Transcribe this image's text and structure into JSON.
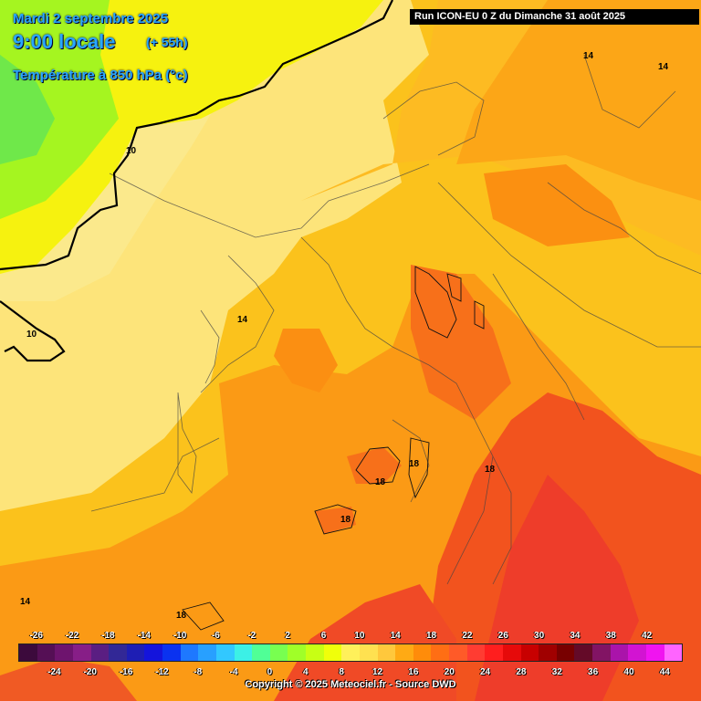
{
  "header": {
    "date": "Mardi 2 septembre 2025",
    "time": "9:00 locale",
    "lead": "(+ 55h)",
    "field": "Température à 850 hPa (°c)"
  },
  "run_banner": "Run ICON-EU 0 Z du Dimanche 31 août 2025",
  "contour_labels": [
    "14",
    "14",
    "10",
    "10",
    "14",
    "18",
    "18",
    "18",
    "18",
    "14",
    "18"
  ],
  "legend": {
    "top_ticks": [
      "-26",
      "-22",
      "-18",
      "-14",
      "-10",
      "-6",
      "-2",
      "2",
      "6",
      "10",
      "14",
      "18",
      "22",
      "26",
      "30",
      "34",
      "38",
      "42"
    ],
    "bottom_ticks": [
      "-24",
      "-20",
      "-16",
      "-12",
      "-8",
      "-4",
      "0",
      "4",
      "8",
      "12",
      "16",
      "20",
      "24",
      "28",
      "32",
      "36",
      "40",
      "44"
    ],
    "colors": [
      "#3c0a3c",
      "#550f55",
      "#6e146e",
      "#871e87",
      "#5a1e82",
      "#322896",
      "#1e1eb4",
      "#1414dc",
      "#0a32f0",
      "#1e78ff",
      "#28a0ff",
      "#32c8ff",
      "#3cf0e6",
      "#50ff96",
      "#78ff50",
      "#a0ff28",
      "#c8ff14",
      "#f0ff0a",
      "#fff05a",
      "#ffe150",
      "#ffc83c",
      "#ffaa14",
      "#ff8c0a",
      "#ff6e14",
      "#ff5a28",
      "#ff3c32",
      "#ff1e1e",
      "#e60a0a",
      "#c80000",
      "#a00000",
      "#780000",
      "#640a28",
      "#821464",
      "#aa14aa",
      "#d214d2",
      "#f014f0",
      "#ff64ff"
    ]
  },
  "copyright": "Copyright © 2025 Meteociel.fr - Source DWD"
}
